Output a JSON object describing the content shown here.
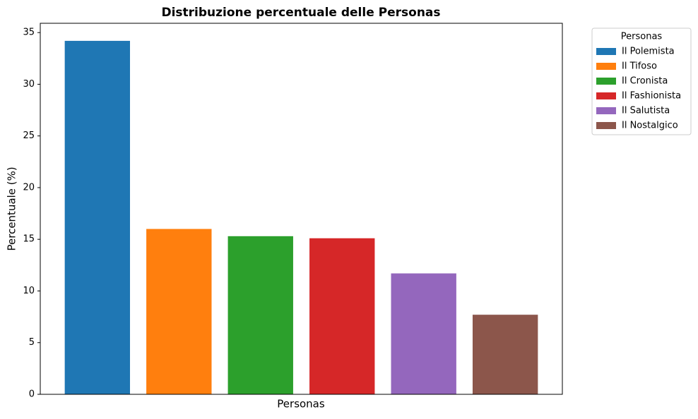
{
  "chart_data": {
    "type": "bar",
    "title": "Distribuzione percentuale delle Personas",
    "xlabel": "Personas",
    "ylabel": "Percentuale (%)",
    "legend_title": "Personas",
    "legend_position": "outside-upper-right",
    "series": [
      {
        "name": "Il Polemista",
        "color": "#1f77b4",
        "values": [
          34.2
        ]
      },
      {
        "name": "Il Tifoso",
        "color": "#ff7f0e",
        "values": [
          16.0
        ]
      },
      {
        "name": "Il Cronista",
        "color": "#2ca02c",
        "values": [
          15.3
        ]
      },
      {
        "name": "Il Fashionista",
        "color": "#d62728",
        "values": [
          15.1
        ]
      },
      {
        "name": "Il Salutista",
        "color": "#9467bd",
        "values": [
          11.7
        ]
      },
      {
        "name": "Il Nostalgico",
        "color": "#8c564b",
        "values": [
          7.7
        ]
      }
    ],
    "ylim": [
      0,
      35.9
    ],
    "yticks": [
      0,
      5,
      10,
      15,
      20,
      25,
      30,
      35
    ],
    "grid": false
  }
}
